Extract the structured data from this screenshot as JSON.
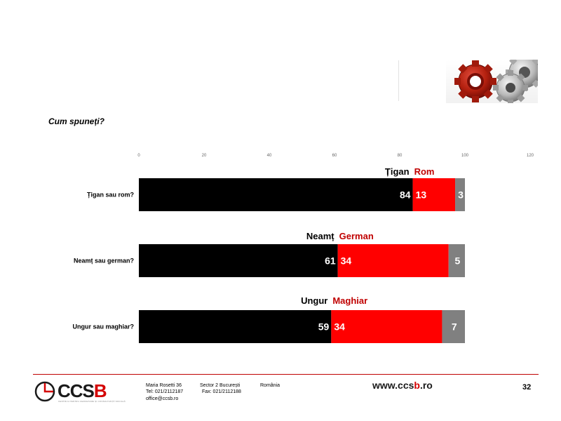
{
  "question": "Cum spuneți?",
  "chart_data": {
    "type": "bar",
    "orientation": "horizontal",
    "stacked": true,
    "xlim": [
      0,
      120
    ],
    "xticks": [
      0,
      20,
      40,
      60,
      80,
      100,
      120
    ],
    "grid": false,
    "categories": [
      "Țigan sau rom?",
      "Neamț sau german?",
      "Ungur sau maghiar?"
    ],
    "series_labels": [
      [
        "Țigan",
        "Rom"
      ],
      [
        "Neamț",
        "German"
      ],
      [
        "Ungur",
        "Maghiar"
      ]
    ],
    "series": [
      {
        "values": [
          84,
          61,
          59
        ],
        "color": "#000000"
      },
      {
        "values": [
          13,
          34,
          34
        ],
        "color": "#ff0000"
      },
      {
        "values": [
          3,
          5,
          7
        ],
        "color": "#808080"
      }
    ]
  },
  "footer": {
    "logo_text_main": "CCS",
    "logo_text_accent": "B",
    "logo_tagline": "CENTRUL PENTRU CERCETARE ȘI CONSULTANȚĂ SOCIALĂ",
    "address_line1_a": "Maria Rosetti 36",
    "address_line1_b": "Sector 2  București",
    "address_line1_c": "România",
    "address_line2_a": "Tel: 021/2112187",
    "address_line2_b": "Fax: 021/2112188",
    "email": "office@ccsb.ro",
    "website_a": "www.ccs",
    "website_b": "b",
    "website_c": ".ro",
    "page_number": "32"
  },
  "colors": {
    "accent_red": "#d40000",
    "footer_line": "#c00000"
  }
}
